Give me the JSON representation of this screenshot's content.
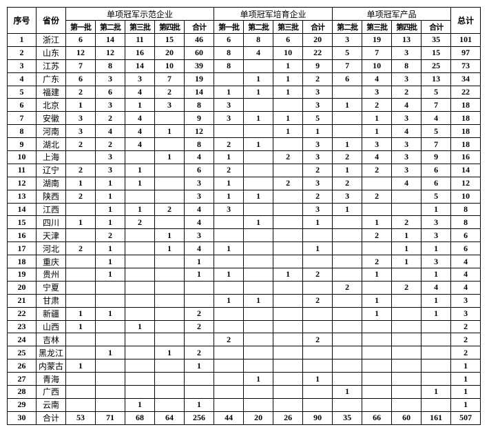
{
  "header": {
    "seq": "序号",
    "province": "省份",
    "total": "总计",
    "groups": [
      "单项冠军示范企业",
      "单项冠军培育企业",
      "单项冠军产品"
    ],
    "sub": [
      "第一批",
      "第二批",
      "第三批",
      "第四批",
      "合计",
      "第一批",
      "第二批",
      "第三批",
      "合计",
      "第二批",
      "第三批",
      "第四批",
      "合计"
    ]
  },
  "rows": [
    [
      "1",
      "浙江",
      "6",
      "14",
      "11",
      "15",
      "46",
      "6",
      "8",
      "6",
      "20",
      "3",
      "19",
      "13",
      "35",
      "101"
    ],
    [
      "2",
      "山东",
      "12",
      "12",
      "16",
      "20",
      "60",
      "8",
      "4",
      "10",
      "22",
      "5",
      "7",
      "3",
      "15",
      "97"
    ],
    [
      "3",
      "江苏",
      "7",
      "8",
      "14",
      "10",
      "39",
      "8",
      "",
      "1",
      "9",
      "7",
      "10",
      "8",
      "25",
      "73"
    ],
    [
      "4",
      "广东",
      "6",
      "3",
      "3",
      "7",
      "19",
      "",
      "1",
      "1",
      "2",
      "6",
      "4",
      "3",
      "13",
      "34"
    ],
    [
      "5",
      "福建",
      "2",
      "6",
      "4",
      "2",
      "14",
      "1",
      "1",
      "1",
      "3",
      "",
      "3",
      "2",
      "5",
      "22"
    ],
    [
      "6",
      "北京",
      "1",
      "3",
      "1",
      "3",
      "8",
      "3",
      "",
      "",
      "3",
      "1",
      "2",
      "4",
      "7",
      "18"
    ],
    [
      "7",
      "安徽",
      "3",
      "2",
      "4",
      "",
      "9",
      "3",
      "1",
      "1",
      "5",
      "",
      "1",
      "3",
      "4",
      "18"
    ],
    [
      "8",
      "河南",
      "3",
      "4",
      "4",
      "1",
      "12",
      "",
      "",
      "1",
      "1",
      "",
      "1",
      "4",
      "5",
      "18"
    ],
    [
      "9",
      "湖北",
      "2",
      "2",
      "4",
      "",
      "8",
      "2",
      "1",
      "",
      "3",
      "1",
      "3",
      "3",
      "7",
      "18"
    ],
    [
      "10",
      "上海",
      "",
      "3",
      "",
      "1",
      "4",
      "1",
      "",
      "2",
      "3",
      "2",
      "4",
      "3",
      "9",
      "16"
    ],
    [
      "11",
      "辽宁",
      "2",
      "3",
      "1",
      "",
      "6",
      "2",
      "",
      "",
      "2",
      "1",
      "2",
      "3",
      "6",
      "14"
    ],
    [
      "12",
      "湖南",
      "1",
      "1",
      "1",
      "",
      "3",
      "1",
      "",
      "2",
      "3",
      "2",
      "",
      "4",
      "6",
      "12"
    ],
    [
      "13",
      "陕西",
      "2",
      "1",
      "",
      "",
      "3",
      "1",
      "1",
      "",
      "2",
      "3",
      "2",
      "",
      "5",
      "10"
    ],
    [
      "14",
      "江西",
      "",
      "1",
      "1",
      "2",
      "4",
      "3",
      "",
      "",
      "3",
      "1",
      "",
      "",
      "1",
      "8"
    ],
    [
      "15",
      "四川",
      "1",
      "1",
      "2",
      "",
      "4",
      "",
      "1",
      "",
      "1",
      "",
      "1",
      "2",
      "3",
      "8"
    ],
    [
      "16",
      "天津",
      "",
      "2",
      "",
      "1",
      "3",
      "",
      "",
      "",
      "",
      "",
      "2",
      "1",
      "3",
      "6"
    ],
    [
      "17",
      "河北",
      "2",
      "1",
      "",
      "1",
      "4",
      "1",
      "",
      "",
      "1",
      "",
      "",
      "1",
      "1",
      "6"
    ],
    [
      "18",
      "重庆",
      "",
      "1",
      "",
      "",
      "1",
      "",
      "",
      "",
      "",
      "",
      "2",
      "1",
      "3",
      "4"
    ],
    [
      "19",
      "贵州",
      "",
      "1",
      "",
      "",
      "1",
      "1",
      "",
      "1",
      "2",
      "",
      "1",
      "",
      "1",
      "4"
    ],
    [
      "20",
      "宁夏",
      "",
      "",
      "",
      "",
      "",
      "",
      "",
      "",
      "",
      "2",
      "",
      "2",
      "4",
      "4"
    ],
    [
      "21",
      "甘肃",
      "",
      "",
      "",
      "",
      "",
      "1",
      "1",
      "",
      "2",
      "",
      "1",
      "",
      "1",
      "3"
    ],
    [
      "22",
      "新疆",
      "1",
      "1",
      "",
      "",
      "2",
      "",
      "",
      "",
      "",
      "",
      "1",
      "",
      "1",
      "3"
    ],
    [
      "23",
      "山西",
      "1",
      "",
      "1",
      "",
      "2",
      "",
      "",
      "",
      "",
      "",
      "",
      "",
      "",
      "2"
    ],
    [
      "24",
      "吉林",
      "",
      "",
      "",
      "",
      "",
      "2",
      "",
      "",
      "2",
      "",
      "",
      "",
      "",
      "2"
    ],
    [
      "25",
      "黑龙江",
      "",
      "1",
      "",
      "1",
      "2",
      "",
      "",
      "",
      "",
      "",
      "",
      "",
      "",
      "2"
    ],
    [
      "26",
      "内蒙古",
      "1",
      "",
      "",
      "",
      "1",
      "",
      "",
      "",
      "",
      "",
      "",
      "",
      "",
      "1"
    ],
    [
      "27",
      "青海",
      "",
      "",
      "",
      "",
      "",
      "",
      "1",
      "",
      "1",
      "",
      "",
      "",
      "",
      "1"
    ],
    [
      "28",
      "广西",
      "",
      "",
      "",
      "",
      "",
      "",
      "",
      "",
      "",
      "1",
      "",
      "",
      "1",
      "1"
    ],
    [
      "29",
      "云南",
      "",
      "",
      "1",
      "",
      "1",
      "",
      "",
      "",
      "",
      "",
      "",
      "",
      "",
      "1"
    ],
    [
      "30",
      "合计",
      "53",
      "71",
      "68",
      "64",
      "256",
      "44",
      "20",
      "26",
      "90",
      "35",
      "66",
      "60",
      "161",
      "507"
    ]
  ]
}
